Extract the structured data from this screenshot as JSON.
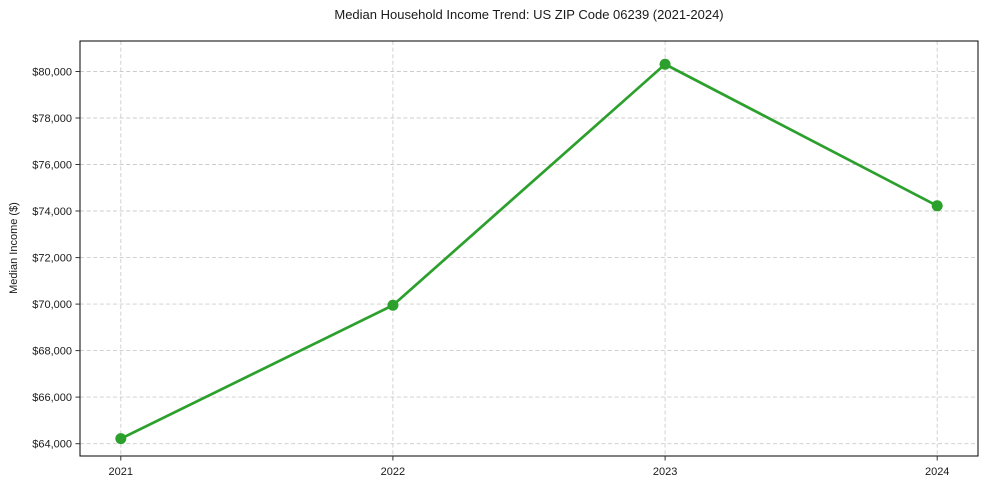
{
  "chart_data": {
    "type": "line",
    "title": "Median Household Income Trend: US ZIP Code 06239 (2021-2024)",
    "xlabel": "",
    "ylabel": "Median Income ($)",
    "x": [
      2021,
      2022,
      2023,
      2024
    ],
    "values": [
      64215,
      69950,
      80310,
      74225
    ],
    "xtick_labels": [
      "2021",
      "2022",
      "2023",
      "2024"
    ],
    "yticks": [
      64000,
      66000,
      68000,
      70000,
      72000,
      74000,
      76000,
      78000,
      80000
    ],
    "ytick_labels": [
      "$64,000",
      "$66,000",
      "$68,000",
      "$70,000",
      "$72,000",
      "$74,000",
      "$76,000",
      "$78,000",
      "$80,000"
    ],
    "xlim": [
      2020.85,
      2024.15
    ],
    "ylim": [
      63470,
      81310
    ],
    "grid": true,
    "grid_style": "dashed",
    "legend_position": "none",
    "colors": {
      "line": "#2ca02c",
      "marker": "#2ca02c",
      "grid": "#cccccc",
      "spine": "#000000",
      "tick": "#333333",
      "text": "#1a1a1a",
      "background": "#ffffff"
    }
  }
}
